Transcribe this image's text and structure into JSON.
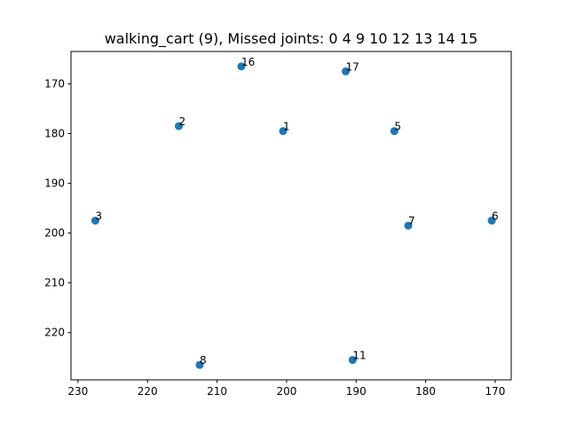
{
  "chart_data": {
    "type": "scatter",
    "title": "walking_cart (9), Missed joints: 0 4 9 10 12 13 14 15",
    "xlabel": "",
    "ylabel": "",
    "xlim": [
      231,
      167.7
    ],
    "ylim": [
      229.5,
      163.5
    ],
    "x_ticks": [
      230,
      220,
      210,
      200,
      190,
      180,
      170
    ],
    "y_ticks": [
      170,
      180,
      190,
      200,
      210,
      220
    ],
    "grid": false,
    "marker_color": "#1f77b4",
    "points": [
      {
        "label": "16",
        "x": 206.5,
        "y": 166.5
      },
      {
        "label": "17",
        "x": 191.5,
        "y": 167.5
      },
      {
        "label": "2",
        "x": 215.5,
        "y": 178.5
      },
      {
        "label": "1",
        "x": 200.5,
        "y": 179.5
      },
      {
        "label": "5",
        "x": 184.5,
        "y": 179.5
      },
      {
        "label": "3",
        "x": 227.5,
        "y": 197.5
      },
      {
        "label": "7",
        "x": 182.5,
        "y": 198.5
      },
      {
        "label": "6",
        "x": 170.5,
        "y": 197.5
      },
      {
        "label": "8",
        "x": 212.5,
        "y": 226.5
      },
      {
        "label": "11",
        "x": 190.5,
        "y": 225.5
      }
    ]
  }
}
